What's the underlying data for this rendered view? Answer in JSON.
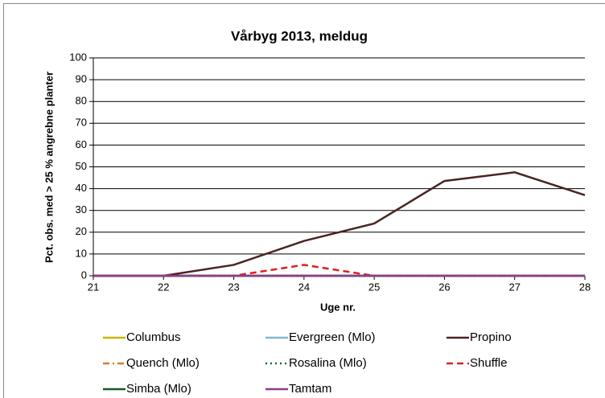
{
  "chart_data": {
    "type": "line",
    "title": "Vårbyg 2013, meldug",
    "x_label": "Uge nr.",
    "y_label": "Pct. obs. med > 25 % angrebne planter",
    "x": [
      21,
      22,
      23,
      24,
      25,
      26,
      27,
      28
    ],
    "xlim": [
      21,
      28
    ],
    "xticks": [
      21,
      22,
      23,
      24,
      25,
      26,
      27,
      28
    ],
    "ylim": [
      0,
      100
    ],
    "yticks": [
      0,
      10,
      20,
      30,
      40,
      50,
      60,
      70,
      80,
      90,
      100
    ],
    "grid": true,
    "legend": "bottom",
    "series": [
      {
        "name": "Columbus",
        "color": "#c8b400",
        "style": "solid",
        "values": [
          0,
          0,
          0,
          0,
          0,
          0,
          0,
          0
        ]
      },
      {
        "name": "Evergreen (Mlo)",
        "color": "#7fb8cc",
        "style": "solid",
        "values": [
          0,
          0,
          0,
          0,
          0,
          0,
          0,
          0
        ]
      },
      {
        "name": "Propino",
        "color": "#4a2424",
        "style": "solid",
        "values": [
          0,
          0,
          5,
          16,
          24,
          43.5,
          47.5,
          37
        ]
      },
      {
        "name": "Quench (Mlo)",
        "color": "#e07a22",
        "style": "dashdot",
        "values": [
          0,
          0,
          0,
          0,
          0,
          0,
          0,
          0
        ]
      },
      {
        "name": "Rosalina (Mlo)",
        "color": "#1e6a32",
        "style": "dot",
        "values": [
          0,
          0,
          0,
          0,
          0,
          0,
          0,
          0
        ]
      },
      {
        "name": "Shuffle",
        "color": "#e02020",
        "style": "dash",
        "values": [
          0,
          0,
          0,
          5,
          0,
          0,
          0,
          0
        ]
      },
      {
        "name": "Simba (Mlo)",
        "color": "#175a28",
        "style": "solid",
        "values": [
          0,
          0,
          0,
          0,
          0,
          0,
          0,
          0
        ]
      },
      {
        "name": "Tamtam",
        "color": "#8e3c8e",
        "style": "solid",
        "values": [
          0,
          0,
          0,
          0,
          0,
          0,
          0,
          0
        ]
      }
    ]
  }
}
